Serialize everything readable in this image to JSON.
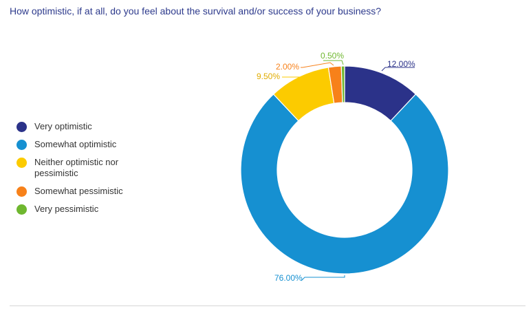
{
  "title": "How optimistic, if at all, do you feel about the survival and/or success of your business?",
  "chart_data": {
    "type": "pie",
    "donut": true,
    "title": "How optimistic, if at all, do you feel about the survival and/or success of your business?",
    "legend_position": "left",
    "slices": [
      {
        "label": "Very optimistic",
        "value": 12.0,
        "value_label": "12.00%",
        "color": "#2b3289"
      },
      {
        "label": "Somewhat optimistic",
        "value": 76.0,
        "value_label": "76.00%",
        "color": "#1690d1"
      },
      {
        "label": "Neither optimistic nor pessimistic",
        "value": 9.5,
        "value_label": "9.50%",
        "color": "#fccb00"
      },
      {
        "label": "Somewhat pessimistic",
        "value": 2.0,
        "value_label": "2.00%",
        "color": "#f7811a"
      },
      {
        "label": "Very pessimistic",
        "value": 0.5,
        "value_label": "0.50%",
        "color": "#6fb72f"
      }
    ]
  }
}
